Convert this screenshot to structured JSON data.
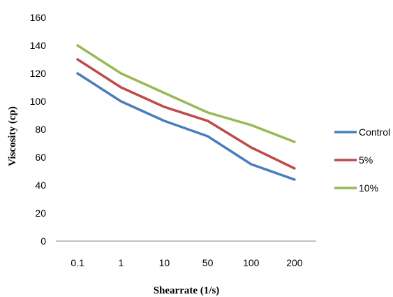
{
  "chart_data": {
    "type": "line",
    "title": "",
    "xlabel": "Shearrate (1/s)",
    "ylabel": "Viscosity (cp)",
    "categories": [
      "0.1",
      "1",
      "10",
      "50",
      "100",
      "200"
    ],
    "ylim": [
      0,
      160
    ],
    "yticks": [
      "0",
      "20",
      "40",
      "60",
      "80",
      "100",
      "120",
      "140",
      "160"
    ],
    "grid": false,
    "legend": "right",
    "series": [
      {
        "name": "Control",
        "color": "#4A7EBB",
        "values": [
          120,
          100,
          86,
          75,
          55,
          44
        ]
      },
      {
        "name": "5%",
        "color": "#BE4B48",
        "values": [
          130,
          110,
          96,
          86,
          67,
          52
        ]
      },
      {
        "name": "10%",
        "color": "#98B954",
        "values": [
          140,
          120,
          106,
          92,
          83,
          71
        ]
      }
    ]
  }
}
